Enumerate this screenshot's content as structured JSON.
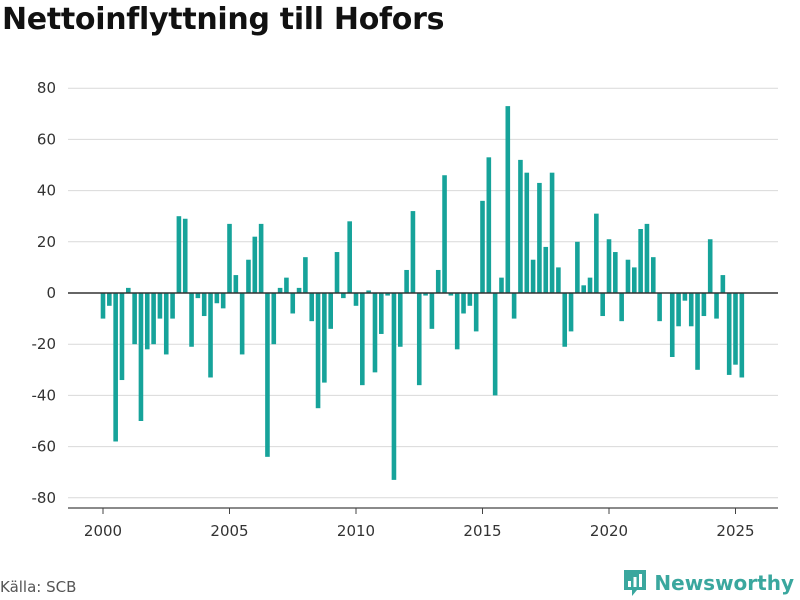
{
  "title": "Nettoinflyttning till Hofors",
  "source": "Källa: SCB",
  "brand": {
    "name": "Newsworthy",
    "icon": "newsworthy-logo-icon",
    "color": "#3aa79e"
  },
  "colors": {
    "bar": "#16a39a",
    "grid": "#d9d9d9",
    "zero_line": "#333333"
  },
  "chart_data": {
    "type": "bar",
    "title": "Nettoinflyttning till Hofors",
    "xlabel": "",
    "ylabel": "",
    "ylim": [
      -85,
      90
    ],
    "yticks": [
      80,
      60,
      40,
      20,
      0,
      -20,
      -40,
      -60,
      -80
    ],
    "xticks": [
      2000,
      2005,
      2010,
      2015,
      2020,
      2025
    ],
    "grid": true,
    "legend": "none",
    "x": [
      2000.0,
      2000.25,
      2000.5,
      2000.75,
      2001.0,
      2001.25,
      2001.5,
      2001.75,
      2002.0,
      2002.25,
      2002.5,
      2002.75,
      2003.0,
      2003.25,
      2003.5,
      2003.75,
      2004.0,
      2004.25,
      2004.5,
      2004.75,
      2005.0,
      2005.25,
      2005.5,
      2005.75,
      2006.0,
      2006.25,
      2006.5,
      2006.75,
      2007.0,
      2007.25,
      2007.5,
      2007.75,
      2008.0,
      2008.25,
      2008.5,
      2008.75,
      2009.0,
      2009.25,
      2009.5,
      2009.75,
      2010.0,
      2010.25,
      2010.5,
      2010.75,
      2011.0,
      2011.25,
      2011.5,
      2011.75,
      2012.0,
      2012.25,
      2012.5,
      2012.75,
      2013.0,
      2013.25,
      2013.5,
      2013.75,
      2014.0,
      2014.25,
      2014.5,
      2014.75,
      2015.0,
      2015.25,
      2015.5,
      2015.75,
      2016.0,
      2016.25,
      2016.5,
      2016.75,
      2017.0,
      2017.25,
      2017.5,
      2017.75,
      2018.0,
      2018.25,
      2018.5,
      2018.75,
      2019.0,
      2019.25,
      2019.5,
      2019.75,
      2020.0,
      2020.25,
      2020.5,
      2020.75,
      2021.0,
      2021.25,
      2021.5,
      2021.75,
      2022.0,
      2022.25,
      2022.5,
      2022.75,
      2023.0,
      2023.25,
      2023.5,
      2023.75,
      2024.0,
      2024.25,
      2024.5,
      2024.75,
      2025.0,
      2025.25
    ],
    "values": [
      -10,
      -5,
      -58,
      -34,
      2,
      -20,
      -50,
      -22,
      -20,
      -10,
      -24,
      -10,
      30,
      29,
      -21,
      -2,
      -9,
      -33,
      -4,
      -6,
      27,
      7,
      -24,
      13,
      22,
      27,
      -64,
      -20,
      2,
      6,
      -8,
      2,
      14,
      -11,
      -45,
      -35,
      -14,
      16,
      -2,
      28,
      -5,
      -36,
      1,
      -31,
      -16,
      -1,
      -73,
      -21,
      9,
      32,
      -36,
      -1,
      -14,
      9,
      46,
      -1,
      -22,
      -8,
      -5,
      -15,
      36,
      53,
      -40,
      6,
      73,
      -10,
      52,
      47,
      13,
      43,
      18,
      47,
      10,
      -21,
      -15,
      20,
      3,
      6,
      31,
      -9,
      21,
      16,
      -11,
      13,
      10,
      25,
      27,
      14,
      -11,
      0,
      -25,
      -13,
      -3,
      -13,
      -30,
      -9,
      21,
      -10,
      7,
      -32,
      -28,
      -33
    ]
  }
}
